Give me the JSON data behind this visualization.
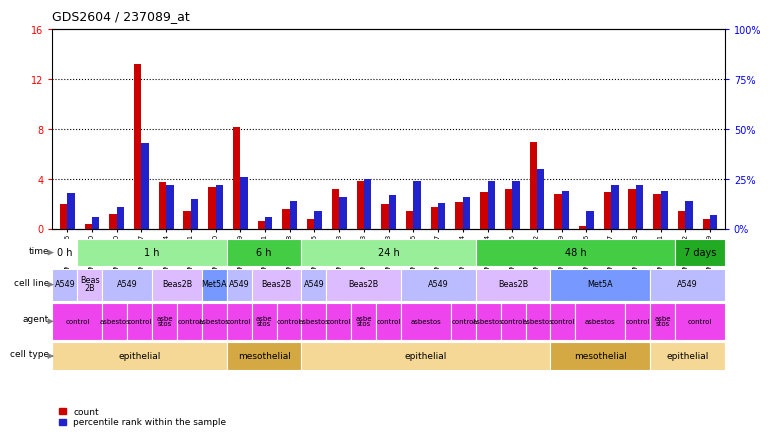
{
  "title": "GDS2604 / 237089_at",
  "samples": [
    "GSM139646",
    "GSM139660",
    "GSM139640",
    "GSM139647",
    "GSM139654",
    "GSM139661",
    "GSM139760",
    "GSM139669",
    "GSM139641",
    "GSM139648",
    "GSM139655",
    "GSM139663",
    "GSM139643",
    "GSM139653",
    "GSM139656",
    "GSM139657",
    "GSM139664",
    "GSM139644",
    "GSM139645",
    "GSM139652",
    "GSM139659",
    "GSM139666",
    "GSM139667",
    "GSM139668",
    "GSM139761",
    "GSM139642",
    "GSM139649"
  ],
  "count_values": [
    2.0,
    0.4,
    1.2,
    13.2,
    3.8,
    1.5,
    3.4,
    8.2,
    0.7,
    1.6,
    0.8,
    3.2,
    3.9,
    2.0,
    1.5,
    1.8,
    2.2,
    3.0,
    3.2,
    7.0,
    2.8,
    0.3,
    3.0,
    3.2,
    2.8,
    1.5,
    0.8
  ],
  "percentile_raw": [
    18,
    6,
    11,
    43,
    22,
    15,
    22,
    26,
    6,
    14,
    9,
    16,
    25,
    17,
    24,
    13,
    16,
    24,
    24,
    30,
    19,
    9,
    22,
    22,
    19,
    14,
    7
  ],
  "ylim_left": [
    0,
    16
  ],
  "ylim_right": [
    0,
    100
  ],
  "yticks_left": [
    0,
    4,
    8,
    12,
    16
  ],
  "yticks_right": [
    0,
    25,
    50,
    75,
    100
  ],
  "ytick_labels_right": [
    "0%",
    "25%",
    "50%",
    "75%",
    "100%"
  ],
  "red_color": "#cc0000",
  "blue_color": "#2222cc",
  "bg_color": "#ffffff",
  "time_groups": [
    {
      "text": "0 h",
      "start": 0,
      "end": 1,
      "color": "#ffffff"
    },
    {
      "text": "1 h",
      "start": 1,
      "end": 7,
      "color": "#99ee99"
    },
    {
      "text": "6 h",
      "start": 7,
      "end": 10,
      "color": "#44cc44"
    },
    {
      "text": "24 h",
      "start": 10,
      "end": 17,
      "color": "#99ee99"
    },
    {
      "text": "48 h",
      "start": 17,
      "end": 25,
      "color": "#44cc44"
    },
    {
      "text": "7 days",
      "start": 25,
      "end": 27,
      "color": "#22aa22"
    }
  ],
  "cellline_groups": [
    {
      "text": "A549",
      "start": 0,
      "end": 1,
      "color": "#bbbbff"
    },
    {
      "text": "Beas\n2B",
      "start": 1,
      "end": 2,
      "color": "#ddbbff"
    },
    {
      "text": "A549",
      "start": 2,
      "end": 4,
      "color": "#bbbbff"
    },
    {
      "text": "Beas2B",
      "start": 4,
      "end": 6,
      "color": "#ddbbff"
    },
    {
      "text": "Met5A",
      "start": 6,
      "end": 7,
      "color": "#7799ff"
    },
    {
      "text": "A549",
      "start": 7,
      "end": 8,
      "color": "#bbbbff"
    },
    {
      "text": "Beas2B",
      "start": 8,
      "end": 10,
      "color": "#ddbbff"
    },
    {
      "text": "A549",
      "start": 10,
      "end": 11,
      "color": "#bbbbff"
    },
    {
      "text": "Beas2B",
      "start": 11,
      "end": 14,
      "color": "#ddbbff"
    },
    {
      "text": "A549",
      "start": 14,
      "end": 17,
      "color": "#bbbbff"
    },
    {
      "text": "Beas2B",
      "start": 17,
      "end": 20,
      "color": "#ddbbff"
    },
    {
      "text": "Met5A",
      "start": 20,
      "end": 24,
      "color": "#7799ff"
    },
    {
      "text": "A549",
      "start": 24,
      "end": 27,
      "color": "#bbbbff"
    }
  ],
  "agent_groups": [
    {
      "text": "control",
      "start": 0,
      "end": 2,
      "color": "#ee44ee"
    },
    {
      "text": "asbestos",
      "start": 2,
      "end": 3,
      "color": "#ee44ee"
    },
    {
      "text": "control",
      "start": 3,
      "end": 4,
      "color": "#ee44ee"
    },
    {
      "text": "asbe\nstos",
      "start": 4,
      "end": 5,
      "color": "#ee44ee"
    },
    {
      "text": "control",
      "start": 5,
      "end": 6,
      "color": "#ee44ee"
    },
    {
      "text": "asbestos",
      "start": 6,
      "end": 7,
      "color": "#ee44ee"
    },
    {
      "text": "control",
      "start": 7,
      "end": 8,
      "color": "#ee44ee"
    },
    {
      "text": "asbe\nstos",
      "start": 8,
      "end": 9,
      "color": "#ee44ee"
    },
    {
      "text": "control",
      "start": 9,
      "end": 10,
      "color": "#ee44ee"
    },
    {
      "text": "asbestos",
      "start": 10,
      "end": 11,
      "color": "#ee44ee"
    },
    {
      "text": "control",
      "start": 11,
      "end": 12,
      "color": "#ee44ee"
    },
    {
      "text": "asbe\nstos",
      "start": 12,
      "end": 13,
      "color": "#ee44ee"
    },
    {
      "text": "control",
      "start": 13,
      "end": 14,
      "color": "#ee44ee"
    },
    {
      "text": "asbestos",
      "start": 14,
      "end": 16,
      "color": "#ee44ee"
    },
    {
      "text": "control",
      "start": 16,
      "end": 17,
      "color": "#ee44ee"
    },
    {
      "text": "asbestos",
      "start": 17,
      "end": 18,
      "color": "#ee44ee"
    },
    {
      "text": "control",
      "start": 18,
      "end": 19,
      "color": "#ee44ee"
    },
    {
      "text": "asbestos",
      "start": 19,
      "end": 20,
      "color": "#ee44ee"
    },
    {
      "text": "control",
      "start": 20,
      "end": 21,
      "color": "#ee44ee"
    },
    {
      "text": "asbestos",
      "start": 21,
      "end": 23,
      "color": "#ee44ee"
    },
    {
      "text": "control",
      "start": 23,
      "end": 24,
      "color": "#ee44ee"
    },
    {
      "text": "asbe\nstos",
      "start": 24,
      "end": 25,
      "color": "#ee44ee"
    },
    {
      "text": "control",
      "start": 25,
      "end": 27,
      "color": "#ee44ee"
    }
  ],
  "celltype_groups": [
    {
      "text": "epithelial",
      "start": 0,
      "end": 7,
      "color": "#f5d896"
    },
    {
      "text": "mesothelial",
      "start": 7,
      "end": 10,
      "color": "#d4a843"
    },
    {
      "text": "epithelial",
      "start": 10,
      "end": 20,
      "color": "#f5d896"
    },
    {
      "text": "mesothelial",
      "start": 20,
      "end": 24,
      "color": "#d4a843"
    },
    {
      "text": "epithelial",
      "start": 24,
      "end": 27,
      "color": "#f5d896"
    }
  ],
  "row_labels": [
    "time",
    "cell line",
    "agent",
    "cell type"
  ],
  "legend_items": [
    {
      "label": "count",
      "color": "#cc0000"
    },
    {
      "label": "percentile rank within the sample",
      "color": "#2222cc"
    }
  ]
}
